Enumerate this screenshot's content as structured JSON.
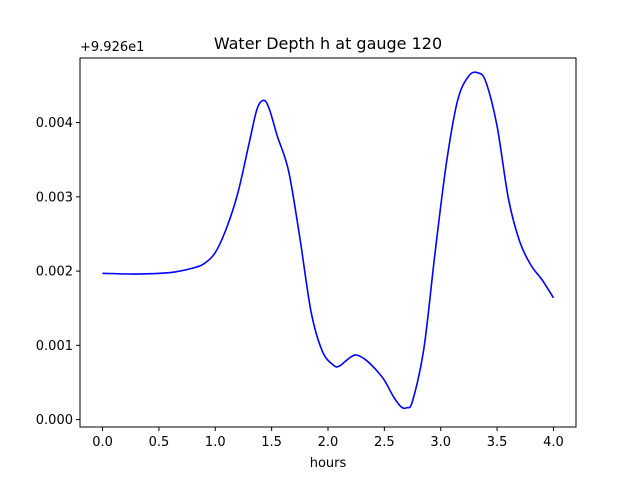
{
  "chart_data": {
    "type": "line",
    "title": "Water Depth h at gauge 120",
    "xlabel": "hours",
    "ylabel": "",
    "offset_text": "+9.926e1",
    "xlim": [
      -0.2,
      4.2
    ],
    "ylim": [
      -0.0001,
      0.00487
    ],
    "xticks": [
      0.0,
      0.5,
      1.0,
      1.5,
      2.0,
      2.5,
      3.0,
      3.5,
      4.0
    ],
    "xtick_labels": [
      "0.0",
      "0.5",
      "1.0",
      "1.5",
      "2.0",
      "2.5",
      "3.0",
      "3.5",
      "4.0"
    ],
    "yticks": [
      0.0,
      0.001,
      0.002,
      0.003,
      0.004
    ],
    "ytick_labels": [
      "0.000",
      "0.001",
      "0.002",
      "0.003",
      "0.004"
    ],
    "grid": false,
    "series": [
      {
        "color": "#0000ff",
        "x": [
          0.0,
          0.3,
          0.6,
          0.8,
          0.9,
          1.0,
          1.1,
          1.2,
          1.3,
          1.37,
          1.43,
          1.48,
          1.55,
          1.65,
          1.75,
          1.85,
          1.95,
          2.05,
          2.1,
          2.15,
          2.2,
          2.25,
          2.33,
          2.42,
          2.5,
          2.58,
          2.65,
          2.7,
          2.75,
          2.85,
          2.95,
          3.05,
          3.15,
          3.25,
          3.33,
          3.4,
          3.5,
          3.6,
          3.7,
          3.8,
          3.9,
          4.0
        ],
        "y": [
          0.00197,
          0.00196,
          0.00198,
          0.00204,
          0.0021,
          0.00225,
          0.00258,
          0.00305,
          0.00372,
          0.00418,
          0.0043,
          0.00418,
          0.00382,
          0.00335,
          0.00245,
          0.00145,
          0.00092,
          0.00073,
          0.00072,
          0.00078,
          0.00084,
          0.00087,
          0.00081,
          0.00068,
          0.00053,
          0.00031,
          0.00017,
          0.00016,
          0.00025,
          0.00095,
          0.00225,
          0.00345,
          0.0043,
          0.00463,
          0.00467,
          0.00455,
          0.00395,
          0.00298,
          0.0024,
          0.00208,
          0.00188,
          0.00164
        ]
      }
    ]
  }
}
